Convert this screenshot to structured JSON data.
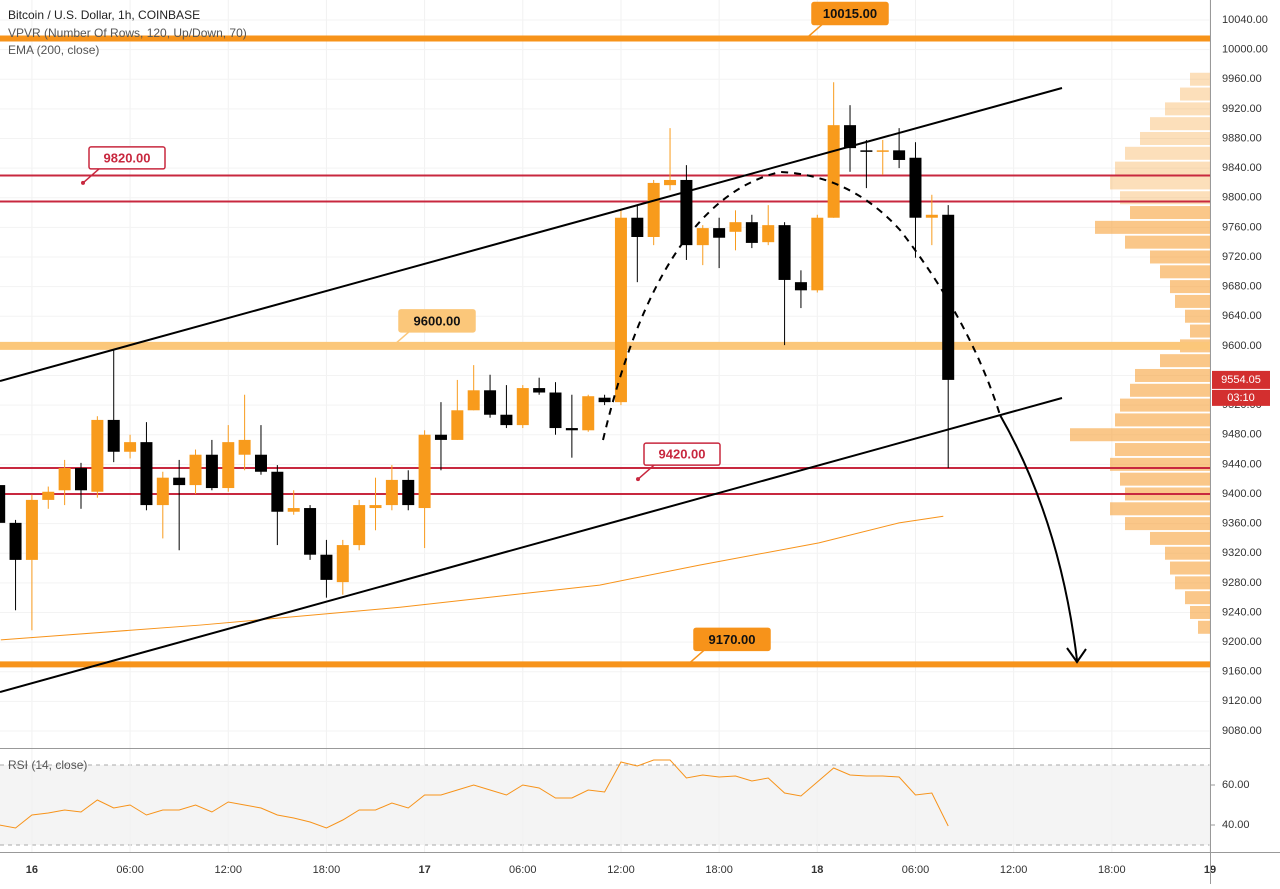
{
  "chart_data": [
    {
      "type": "candlestick",
      "title": "Bitcoin / U.S. Dollar, 1h, COINBASE",
      "subtitle": "VPVR (Number Of Rows, 120, Up/Down, 70)",
      "ema_label": "EMA (200, close)",
      "xlim": [
        -1.95,
        72
      ],
      "ylim": [
        9057,
        10067
      ],
      "yticks": [
        {
          "value": 9080,
          "label": "9080.00"
        },
        {
          "value": 9120,
          "label": "9120.00"
        },
        {
          "value": 9160,
          "label": "9160.00"
        },
        {
          "value": 9200,
          "label": "9200.00"
        },
        {
          "value": 9240,
          "label": "9240.00"
        },
        {
          "value": 9280,
          "label": "9280.00"
        },
        {
          "value": 9320,
          "label": "9320.00"
        },
        {
          "value": 9360,
          "label": "9360.00"
        },
        {
          "value": 9400,
          "label": "9400.00"
        },
        {
          "value": 9440,
          "label": "9440.00"
        },
        {
          "value": 9480,
          "label": "9480.00"
        },
        {
          "value": 9520,
          "label": "9520.00"
        },
        {
          "value": 9560,
          "label": "9560.00"
        },
        {
          "value": 9600,
          "label": "9600.00"
        },
        {
          "value": 9640,
          "label": "9640.00"
        },
        {
          "value": 9680,
          "label": "9680.00"
        },
        {
          "value": 9720,
          "label": "9720.00"
        },
        {
          "value": 9760,
          "label": "9760.00"
        },
        {
          "value": 9800,
          "label": "9800.00"
        },
        {
          "value": 9840,
          "label": "9840.00"
        },
        {
          "value": 9880,
          "label": "9880.00"
        },
        {
          "value": 9920,
          "label": "9920.00"
        },
        {
          "value": 9960,
          "label": "9960.00"
        },
        {
          "value": 10000,
          "label": "10000.00"
        },
        {
          "value": 10040,
          "label": "10040.00"
        }
      ],
      "grid": true,
      "up_color": "#f89b1c",
      "down_color": "#000000",
      "x": [
        -2,
        -1,
        0,
        1,
        2,
        3,
        4,
        5,
        6,
        7,
        8,
        9,
        10,
        11,
        12,
        13,
        14,
        15,
        16,
        17,
        18,
        19,
        20,
        21,
        22,
        23,
        24,
        25,
        26,
        27,
        28,
        29,
        30,
        31,
        32,
        33,
        34,
        35,
        36,
        37,
        38,
        39,
        40,
        41,
        42,
        43,
        44,
        45,
        46,
        47,
        48,
        49,
        50,
        51,
        52,
        53,
        54,
        55,
        56
      ],
      "open": [
        9412,
        9361,
        9311,
        9392,
        9405,
        9435,
        9403,
        9500,
        9457,
        9470,
        9385,
        9422,
        9412,
        9453,
        9408,
        9453,
        9453,
        9430,
        9376,
        9381,
        9318,
        9281,
        9331,
        9381,
        9385,
        9419,
        9381,
        9480,
        9473,
        9513,
        9540,
        9507,
        9493,
        9543,
        9537,
        9489,
        9486,
        9530,
        9524,
        9773,
        9747,
        9817,
        9824,
        9736,
        9759,
        9754,
        9767,
        9740,
        9763,
        9686,
        9675,
        9773,
        9898,
        9864,
        9862,
        9864,
        9854,
        9773,
        9777
      ],
      "high": [
        9420,
        9365,
        9399,
        9410,
        9446,
        9442,
        9505,
        9594,
        9480,
        9497,
        9430,
        9446,
        9460,
        9473,
        9493,
        9534,
        9493,
        9439,
        9405,
        9385,
        9338,
        9338,
        9392,
        9422,
        9439,
        9432,
        9486,
        9524,
        9554,
        9574,
        9561,
        9547,
        9547,
        9557,
        9551,
        9534,
        9534,
        9534,
        9784,
        9790,
        9824,
        9894,
        9844,
        9763,
        9773,
        9783,
        9777,
        9790,
        9767,
        9702,
        9777,
        9956,
        9925,
        9878,
        9878,
        9894,
        9875,
        9804,
        9790
      ],
      "low": [
        9350,
        9243,
        9216,
        9380,
        9385,
        9380,
        9395,
        9443,
        9448,
        9378,
        9340,
        9324,
        9400,
        9405,
        9403,
        9432,
        9426,
        9331,
        9372,
        9311,
        9260,
        9264,
        9324,
        9351,
        9378,
        9378,
        9327,
        9432,
        9473,
        9513,
        9503,
        9489,
        9489,
        9534,
        9480,
        9449,
        9484,
        9520,
        9520,
        9686,
        9736,
        9810,
        9716,
        9709,
        9705,
        9729,
        9732,
        9736,
        9601,
        9651,
        9672,
        9773,
        9835,
        9813,
        9831,
        9840,
        9719,
        9736,
        9435
      ],
      "close": [
        9361,
        9311,
        9392,
        9403,
        9435,
        9405,
        9500,
        9457,
        9470,
        9385,
        9422,
        9412,
        9453,
        9408,
        9470,
        9473,
        9430,
        9376,
        9381,
        9318,
        9284,
        9331,
        9385,
        9385,
        9419,
        9385,
        9480,
        9473,
        9513,
        9540,
        9507,
        9493,
        9543,
        9537,
        9489,
        9486,
        9532,
        9524,
        9773,
        9747,
        9820,
        9824,
        9736,
        9759,
        9746,
        9767,
        9739,
        9763,
        9689,
        9675,
        9773,
        9898,
        9867,
        9862,
        9864,
        9851,
        9773,
        9777,
        9554.05
      ],
      "ema": {
        "name": "EMA (200, close)",
        "color": "#f7931a",
        "x": [
          -1.9,
          10.3,
          22.5,
          34.7,
          40.8,
          48.1,
          53,
          55.7
        ],
        "values": [
          9203,
          9223,
          9247,
          9277,
          9304,
          9334,
          9361,
          9370
        ]
      },
      "levels": [
        {
          "label": "10015.00",
          "value": 10015,
          "kind": "line",
          "color": "#f7931a"
        },
        {
          "label": "9820.00",
          "value": 9820,
          "kind": "zone",
          "color": "#c8283f",
          "lines": [
            9830,
            9795
          ]
        },
        {
          "label": "9600.00",
          "value": 9600,
          "kind": "band",
          "color": "#fbc77a"
        },
        {
          "label": "9420.00",
          "value": 9420,
          "kind": "zone",
          "color": "#c8283f",
          "lines": [
            9435,
            9400
          ]
        },
        {
          "label": "9170.00",
          "value": 9170,
          "kind": "line",
          "color": "#f7931a"
        }
      ],
      "vpvr": {
        "color": "#f7a23a",
        "prices": [
          9960,
          9940,
          9920,
          9900,
          9880,
          9860,
          9840,
          9820,
          9800,
          9780,
          9760,
          9740,
          9720,
          9700,
          9680,
          9660,
          9640,
          9620,
          9600,
          9580,
          9560,
          9540,
          9520,
          9500,
          9480,
          9460,
          9440,
          9420,
          9400,
          9380,
          9360,
          9340,
          9320,
          9300,
          9280,
          9260,
          9240,
          9220
        ],
        "values": [
          20,
          30,
          45,
          60,
          70,
          85,
          95,
          100,
          90,
          80,
          115,
          85,
          60,
          50,
          40,
          35,
          25,
          20,
          30,
          50,
          75,
          80,
          90,
          95,
          140,
          95,
          100,
          90,
          85,
          100,
          85,
          60,
          45,
          40,
          35,
          25,
          20,
          12
        ]
      },
      "last_price": {
        "value": 9554.05,
        "label": "9554.05",
        "color": "#d32f2f"
      },
      "countdown": "03:10"
    },
    {
      "type": "line",
      "title": "RSI (14, close)",
      "xlim": [
        -1.95,
        72
      ],
      "ylim": [
        26.5,
        77.5
      ],
      "yticks": [
        {
          "value": 40,
          "label": "40.00"
        },
        {
          "value": 60,
          "label": "60.00"
        }
      ],
      "bands": [
        30,
        70
      ],
      "xticks": [
        {
          "value": 0,
          "label": "16"
        },
        {
          "value": 6,
          "label": "06:00"
        },
        {
          "value": 12,
          "label": "12:00"
        },
        {
          "value": 18,
          "label": "18:00"
        },
        {
          "value": 24,
          "label": "17"
        },
        {
          "value": 30,
          "label": "06:00"
        },
        {
          "value": 36,
          "label": "12:00"
        },
        {
          "value": 42,
          "label": "18:00"
        },
        {
          "value": 48,
          "label": "18"
        },
        {
          "value": 54,
          "label": "06:00"
        },
        {
          "value": 60,
          "label": "12:00"
        },
        {
          "value": 66,
          "label": "18:00"
        },
        {
          "value": 72,
          "label": "19"
        }
      ],
      "series": [
        {
          "name": "RSI (14, close)",
          "color": "#f7931a",
          "x": [
            -2,
            -1,
            0,
            1,
            2,
            3,
            4,
            5,
            6,
            7,
            8,
            9,
            10,
            11,
            12,
            13,
            14,
            15,
            16,
            17,
            18,
            19,
            20,
            21,
            22,
            23,
            24,
            25,
            26,
            27,
            28,
            29,
            30,
            31,
            32,
            33,
            34,
            35,
            36,
            37,
            38,
            39,
            40,
            41,
            42,
            43,
            44,
            45,
            46,
            47,
            48,
            49,
            50,
            51,
            52,
            53,
            54,
            55,
            56
          ],
          "values": [
            40,
            38.5,
            45,
            46,
            47.5,
            46.5,
            52.5,
            48.5,
            50,
            45,
            47.5,
            47.5,
            50,
            46.5,
            51.5,
            50,
            48.5,
            45,
            43.5,
            41.5,
            38.5,
            42.5,
            47.5,
            47.5,
            51,
            48.5,
            55,
            55,
            57.5,
            60,
            57.5,
            55,
            60,
            58.5,
            53.5,
            53.5,
            57.5,
            56.5,
            71.5,
            69.5,
            72.5,
            72.5,
            63.5,
            65,
            64,
            64.5,
            62,
            63.5,
            56,
            54.5,
            61.5,
            68.5,
            65,
            64.5,
            64.5,
            64,
            55,
            56,
            39.5
          ]
        }
      ]
    }
  ]
}
